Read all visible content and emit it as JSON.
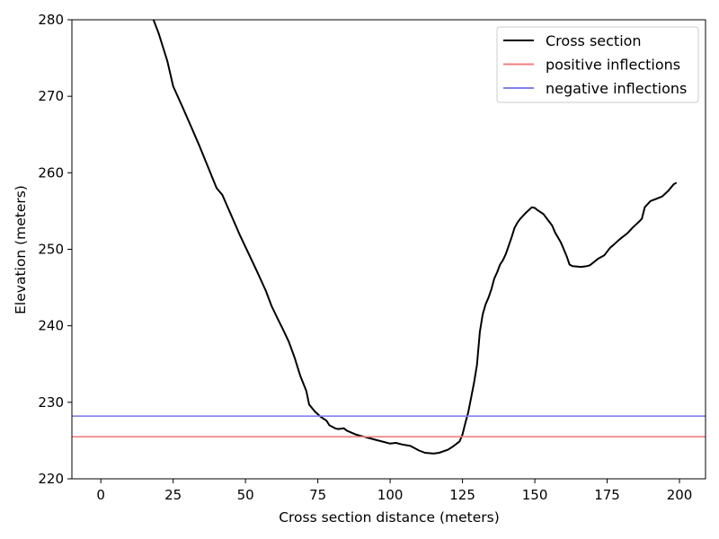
{
  "chart_data": {
    "type": "line",
    "title": "",
    "xlabel": "Cross section distance (meters)",
    "ylabel": "Elevation (meters)",
    "xlim": [
      -10,
      209
    ],
    "ylim": [
      220,
      280
    ],
    "x_ticks": [
      0,
      25,
      50,
      75,
      100,
      125,
      150,
      175,
      200
    ],
    "y_ticks": [
      220,
      230,
      240,
      250,
      260,
      270,
      280
    ],
    "grid": false,
    "legend_position": "top-right",
    "series": [
      {
        "name": "Cross section",
        "color": "#000000",
        "x": [
          18,
          20,
          23,
          25,
          28,
          31,
          34,
          37,
          40,
          42,
          45,
          48,
          51,
          54,
          57,
          59,
          61,
          63,
          65,
          67,
          69,
          71,
          72,
          74,
          76,
          78,
          79,
          81,
          82,
          84,
          85,
          88,
          90,
          93,
          95,
          98,
          100,
          102,
          104,
          107,
          110,
          112,
          115,
          117,
          120,
          122,
          124,
          125,
          126,
          127,
          128,
          129,
          130,
          131,
          132,
          133,
          134,
          135,
          136,
          137,
          138,
          139,
          140,
          142,
          143,
          144,
          145,
          147,
          149,
          150,
          151,
          153,
          154,
          156,
          157,
          159,
          160,
          161,
          162,
          163,
          166,
          168,
          169,
          170,
          172,
          174,
          176,
          177,
          179,
          180,
          182,
          184,
          186,
          187,
          188,
          190,
          192,
          194,
          196,
          198,
          199
        ],
        "y": [
          280.2,
          278.2,
          274.6,
          271.3,
          268.8,
          266.2,
          263.6,
          260.8,
          258.0,
          257.1,
          254.5,
          251.9,
          249.5,
          247.1,
          244.6,
          242.6,
          241.0,
          239.5,
          237.9,
          235.8,
          233.4,
          231.5,
          229.7,
          228.8,
          228.1,
          227.6,
          227.0,
          226.6,
          226.5,
          226.6,
          226.3,
          225.8,
          225.6,
          225.3,
          225.1,
          224.8,
          224.6,
          224.7,
          224.5,
          224.3,
          223.7,
          223.4,
          223.3,
          223.4,
          223.8,
          224.3,
          224.9,
          225.8,
          227.3,
          228.7,
          230.6,
          232.6,
          234.9,
          239.2,
          241.5,
          242.8,
          243.7,
          244.8,
          246.2,
          247.0,
          248.0,
          248.6,
          249.4,
          251.6,
          252.8,
          253.5,
          254.0,
          254.8,
          255.5,
          255.4,
          255.1,
          254.6,
          254.1,
          253.1,
          252.2,
          250.9,
          250.0,
          249.1,
          248.0,
          247.8,
          247.7,
          247.8,
          247.9,
          248.2,
          248.8,
          249.2,
          250.2,
          250.5,
          251.2,
          251.5,
          252.1,
          252.9,
          253.6,
          254.0,
          255.5,
          256.3,
          256.6,
          256.9,
          257.6,
          258.5,
          258.7
        ]
      },
      {
        "name": "positive inflections",
        "color": "#f08080",
        "y_constant": 225.5
      },
      {
        "name": "negative inflections",
        "color": "#8080f0",
        "y_constant": 228.2
      }
    ]
  }
}
